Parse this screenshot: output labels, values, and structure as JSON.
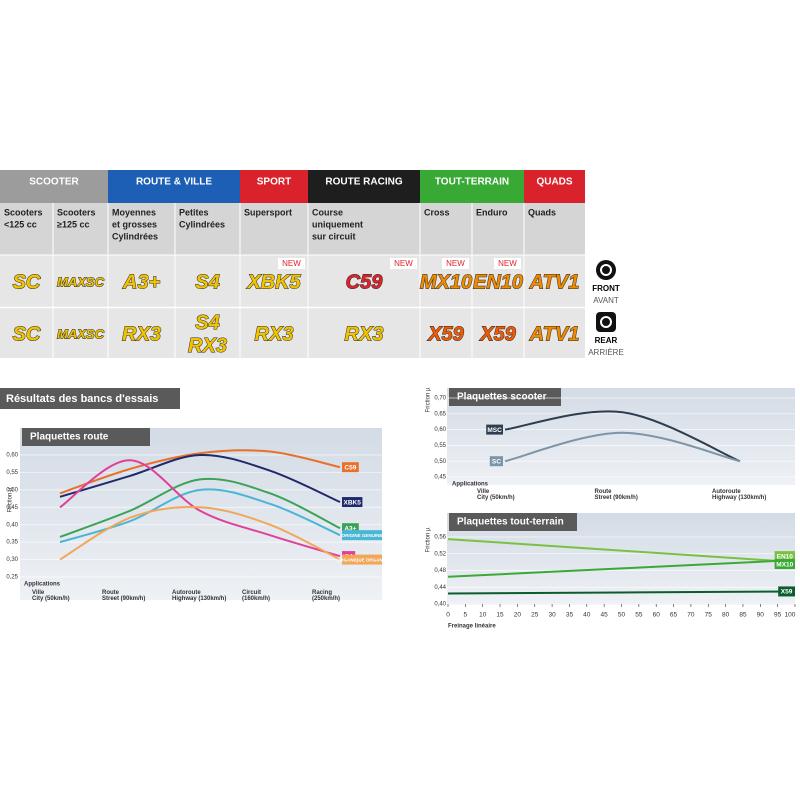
{
  "table": {
    "groups": [
      {
        "label": "SCOOTER",
        "color": "#9c9c9c"
      },
      {
        "label": "ROUTE & VILLE",
        "color": "#1c5fb5"
      },
      {
        "label": "SPORT",
        "color": "#d9222b"
      },
      {
        "label": "ROUTE RACING",
        "color": "#1e1e1e"
      },
      {
        "label": "TOUT-TERRAIN",
        "color": "#38a935"
      },
      {
        "label": "QUADS",
        "color": "#d9222b"
      }
    ],
    "columns": [
      [
        "Scooters",
        "<125 cc"
      ],
      [
        "Scooters",
        "≥125 cc"
      ],
      [
        "Moyennes",
        "et grosses",
        "Cylindrées"
      ],
      [
        "Petites",
        "Cylindrées"
      ],
      [
        "Supersport"
      ],
      [
        "Course",
        "uniquement",
        "sur circuit"
      ],
      [
        "Cross"
      ],
      [
        "Enduro"
      ],
      [
        "Quads"
      ]
    ],
    "front": [
      {
        "lines": [
          "SC"
        ],
        "color": "#f2c400"
      },
      {
        "lines": [
          "MAXSC"
        ],
        "color": "#f2c400"
      },
      {
        "lines": [
          "A3+"
        ],
        "color": "#f2c400"
      },
      {
        "lines": [
          "S4"
        ],
        "color": "#f2c400"
      },
      {
        "lines": [
          "XBK5"
        ],
        "color": "#f2c400",
        "new": "NEW"
      },
      {
        "lines": [
          "C59"
        ],
        "color": "#e0232b",
        "new": "NEW"
      },
      {
        "lines": [
          "MX10"
        ],
        "color": "#f08a00",
        "new": "NEW"
      },
      {
        "lines": [
          "EN10"
        ],
        "color": "#f08a00",
        "new": "NEW"
      },
      {
        "lines": [
          "ATV1"
        ],
        "color": "#f08a00"
      }
    ],
    "rear": [
      {
        "lines": [
          "SC"
        ],
        "color": "#f2c400"
      },
      {
        "lines": [
          "MAXSC"
        ],
        "color": "#f2c400"
      },
      {
        "lines": [
          "RX3"
        ],
        "color": "#f2c400"
      },
      {
        "lines": [
          "S4",
          "RX3"
        ],
        "color": "#f2c400"
      },
      {
        "lines": [
          "RX3"
        ],
        "color": "#f2c400"
      },
      {
        "lines": [
          "RX3"
        ],
        "color": "#f2c400"
      },
      {
        "lines": [
          "X59"
        ],
        "color": "#f05a00"
      },
      {
        "lines": [
          "X59"
        ],
        "color": "#f05a00"
      },
      {
        "lines": [
          "ATV1"
        ],
        "color": "#f08a00"
      }
    ]
  },
  "legend": {
    "front": {
      "title": "FRONT",
      "subtitle": "AVANT"
    },
    "rear": {
      "title": "REAR",
      "subtitle": "ARRIÈRE"
    }
  },
  "section_title": "Résultats des bancs d'essais",
  "chart_data": [
    {
      "type": "line",
      "title": "Plaquettes route",
      "y_label": "Friction µ",
      "x_label": "Applications",
      "categories": [
        "Ville City (50km/h)",
        "Route Street (90km/h)",
        "Autoroute Highway (130km/h)",
        "Circuit (160km/h)",
        "Racing (250km/h)"
      ],
      "ylim": [
        0.25,
        0.6
      ],
      "yticks": [
        {
          "value": 0.25,
          "label": "0,25"
        },
        {
          "value": 0.3,
          "label": "0,30"
        },
        {
          "value": 0.35,
          "label": "0,35"
        },
        {
          "value": 0.4,
          "label": "0,40"
        },
        {
          "value": 0.45,
          "label": "0,45"
        },
        {
          "value": 0.5,
          "label": "0,50"
        },
        {
          "value": 0.55,
          "label": "0,55"
        },
        {
          "value": 0.6,
          "label": "0,60"
        }
      ],
      "grid": true,
      "series": [
        {
          "name": "C59",
          "color": "#e8702a",
          "values": [
            0.49,
            0.56,
            0.605,
            0.61,
            0.565
          ]
        },
        {
          "name": "XBK5",
          "color": "#1f2a6b",
          "values": [
            0.48,
            0.54,
            0.6,
            0.555,
            0.465
          ]
        },
        {
          "name": "A3+",
          "color": "#3aa357",
          "values": [
            0.365,
            0.44,
            0.53,
            0.49,
            0.39
          ]
        },
        {
          "name": "ORIGINE GENUINE",
          "color": "#49b6d6",
          "values": [
            0.35,
            0.41,
            0.5,
            0.46,
            0.37
          ]
        },
        {
          "name": "S4",
          "color": "#e0409a",
          "values": [
            0.45,
            0.585,
            0.44,
            0.37,
            0.31
          ]
        },
        {
          "name": "ORGANIQUE ORGANIC",
          "color": "#f2a65a",
          "values": [
            0.3,
            0.42,
            0.45,
            0.4,
            0.3
          ]
        }
      ]
    },
    {
      "type": "line",
      "title": "Plaquettes scooter",
      "y_label": "Friction µ",
      "x_label": "Applications",
      "categories": [
        "Ville City (50km/h)",
        "Route Street (90km/h)",
        "Autoroute Highway (130km/h)"
      ],
      "ylim": [
        0.45,
        0.7
      ],
      "yticks": [
        {
          "value": 0.45,
          "label": "0,45"
        },
        {
          "value": 0.5,
          "label": "0,50"
        },
        {
          "value": 0.55,
          "label": "0,55"
        },
        {
          "value": 0.6,
          "label": "0,60"
        },
        {
          "value": 0.65,
          "label": "0,65"
        },
        {
          "value": 0.7,
          "label": "0,70"
        }
      ],
      "grid": true,
      "series": [
        {
          "name": "MSC",
          "color": "#2c3e50",
          "values": [
            0.6,
            0.655,
            0.5
          ]
        },
        {
          "name": "SC",
          "color": "#7d95a8",
          "values": [
            0.5,
            0.59,
            0.5
          ]
        }
      ]
    },
    {
      "type": "line",
      "title": "Plaquettes tout-terrain",
      "y_label": "Friction µ",
      "x_label": "Freinage linéaire",
      "x": [
        0,
        100
      ],
      "xlim": [
        0,
        100
      ],
      "xticks": [
        0,
        5,
        10,
        15,
        20,
        25,
        30,
        35,
        40,
        45,
        50,
        55,
        60,
        65,
        70,
        75,
        80,
        85,
        90,
        95,
        100
      ],
      "ylim": [
        0.4,
        0.56
      ],
      "yticks": [
        {
          "value": 0.4,
          "label": "0,40"
        },
        {
          "value": 0.44,
          "label": "0,44"
        },
        {
          "value": 0.48,
          "label": "0,48"
        },
        {
          "value": 0.52,
          "label": "0,52"
        },
        {
          "value": 0.56,
          "label": "0,56"
        }
      ],
      "grid": true,
      "series": [
        {
          "name": "EN10",
          "color": "#7ac143",
          "values": [
            0.555,
            0.5
          ]
        },
        {
          "name": "MX10",
          "color": "#3aaa35",
          "values": [
            0.465,
            0.505
          ]
        },
        {
          "name": "X59",
          "color": "#0b5d2c",
          "values": [
            0.425,
            0.43
          ]
        }
      ]
    }
  ]
}
